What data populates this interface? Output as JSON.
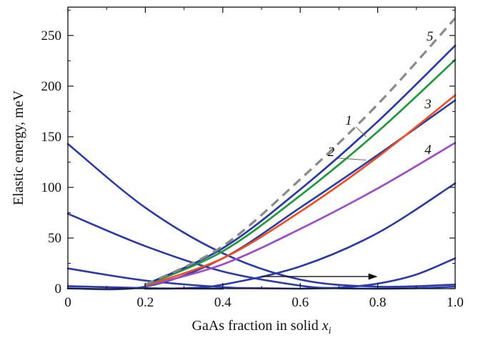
{
  "chart_data": {
    "type": "line",
    "xlabel": "GaAs fraction in solid",
    "xlabel_var": "x",
    "xlabel_sub": "i",
    "ylabel": "Elastic energy, meV",
    "xlim": [
      0,
      1
    ],
    "ylim": [
      0,
      278
    ],
    "x_ticks": [
      0,
      0.2,
      0.4,
      0.6,
      0.8,
      1.0
    ],
    "x_tick_labels": [
      "0",
      "0.2",
      "0.4",
      "0.6",
      "0.8",
      "1.0"
    ],
    "y_ticks": [
      0,
      50,
      100,
      150,
      200,
      250
    ],
    "y_tick_labels": [
      "0",
      "50",
      "100",
      "150",
      "200",
      "250"
    ],
    "grid": false,
    "labeled_curves": [
      {
        "name": "1",
        "color": "#2a3aa6",
        "dash": false,
        "points": [
          [
            0.2,
            4
          ],
          [
            0.4,
            40
          ],
          [
            0.6,
            98
          ],
          [
            0.8,
            165
          ],
          [
            1.0,
            240
          ]
        ]
      },
      {
        "name": "2",
        "color": "#1e9a3a",
        "dash": false,
        "points": [
          [
            0.2,
            3.5
          ],
          [
            0.4,
            37
          ],
          [
            0.6,
            92
          ],
          [
            0.8,
            155
          ],
          [
            1.0,
            226
          ]
        ]
      },
      {
        "name": "3",
        "color": "#f04e23",
        "dash": false,
        "points": [
          [
            0.2,
            3
          ],
          [
            0.4,
            30
          ],
          [
            0.6,
            76
          ],
          [
            0.8,
            130
          ],
          [
            1.0,
            191
          ]
        ]
      },
      {
        "name": "4",
        "color": "#a04cc2",
        "dash": false,
        "points": [
          [
            0.2,
            2.5
          ],
          [
            0.4,
            24
          ],
          [
            0.6,
            59
          ],
          [
            0.8,
            99
          ],
          [
            1.0,
            144
          ]
        ]
      },
      {
        "name": "5",
        "color": "#8a8a8a",
        "dash": true,
        "points": [
          [
            0.2,
            4
          ],
          [
            0.4,
            42
          ],
          [
            0.6,
            108
          ],
          [
            0.8,
            182
          ],
          [
            1.0,
            267
          ]
        ]
      }
    ],
    "family_curves": [
      {
        "color": "#2a3aa6",
        "points": [
          [
            0,
            143
          ],
          [
            0.2,
            80
          ],
          [
            0.4,
            35
          ],
          [
            0.6,
            9
          ],
          [
            0.8,
            2
          ],
          [
            1.0,
            4
          ]
        ]
      },
      {
        "color": "#2a3aa6",
        "points": [
          [
            0,
            74
          ],
          [
            0.2,
            42
          ],
          [
            0.4,
            17
          ],
          [
            0.6,
            3
          ],
          [
            0.7,
            0.5
          ],
          [
            0.8,
            0
          ]
        ]
      },
      {
        "color": "#2a3aa6",
        "points": [
          [
            0,
            20
          ],
          [
            0.2,
            8
          ],
          [
            0.4,
            1.5
          ],
          [
            0.5,
            0.5
          ],
          [
            0.6,
            0
          ]
        ]
      },
      {
        "color": "#2a3aa6",
        "points": [
          [
            0,
            2.5
          ],
          [
            0.2,
            0.6
          ],
          [
            0.3,
            0.2
          ],
          [
            0.4,
            0
          ]
        ]
      },
      {
        "color": "#2a3aa6",
        "points": [
          [
            0,
            0.3
          ],
          [
            0.2,
            2
          ],
          [
            0.4,
            30
          ],
          [
            0.6,
            80
          ],
          [
            0.8,
            132
          ],
          [
            1.0,
            186
          ]
        ]
      },
      {
        "color": "#2a3aa6",
        "points": [
          [
            0.2,
            0
          ],
          [
            0.3,
            0.5
          ],
          [
            0.4,
            4
          ],
          [
            0.6,
            22
          ],
          [
            0.8,
            55
          ],
          [
            1.0,
            104
          ]
        ]
      },
      {
        "color": "#2a3aa6",
        "points": [
          [
            0.6,
            0
          ],
          [
            0.7,
            1
          ],
          [
            0.8,
            5
          ],
          [
            0.9,
            14
          ],
          [
            1.0,
            30
          ]
        ]
      },
      {
        "color": "#2a3aa6",
        "points": [
          [
            0.8,
            0
          ],
          [
            0.9,
            0.5
          ],
          [
            1.0,
            2
          ]
        ]
      }
    ],
    "label_positions": [
      {
        "name": "1",
        "text_at": [
          0.725,
          162
        ],
        "leader_to": [
          0.77,
          150
        ]
      },
      {
        "name": "2",
        "text_at": [
          0.68,
          131
        ],
        "leader_to": [
          0.77,
          127
        ]
      },
      {
        "name": "3",
        "text_at": [
          0.93,
          178
        ]
      },
      {
        "name": "4",
        "text_at": [
          0.93,
          133
        ]
      },
      {
        "name": "5",
        "text_at": [
          0.935,
          245
        ]
      }
    ],
    "arrow": {
      "from": [
        0.5,
        12
      ],
      "to": [
        0.8,
        12
      ],
      "color": "#111111"
    }
  }
}
